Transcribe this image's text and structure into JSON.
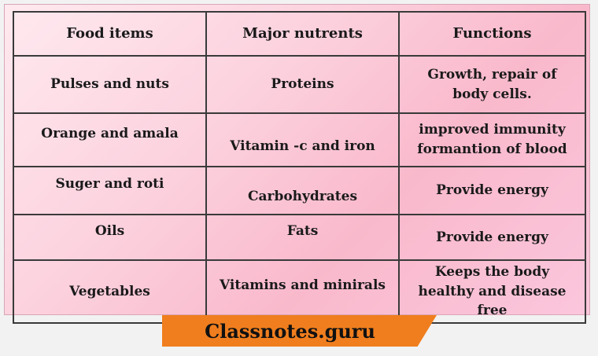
{
  "table": {
    "headers": [
      "Food items",
      "Major nutrents",
      "Functions"
    ],
    "rows": [
      [
        "Pulses and nuts",
        "Proteins",
        "Growth, repair of body cells."
      ],
      [
        "Orange and amala",
        "Vitamin -c and iron",
        "improved immunity formantion of blood"
      ],
      [
        "Suger and roti",
        "Carbohydrates",
        "Provide energy"
      ],
      [
        "Oils",
        "Fats",
        "Provide energy"
      ],
      [
        "Vegetables",
        "Vitamins and minirals",
        "Keeps the body healthy and disease free"
      ]
    ]
  },
  "footer": {
    "watermark": "Classnotes.guru",
    "accent_color": "#f07e1e"
  }
}
